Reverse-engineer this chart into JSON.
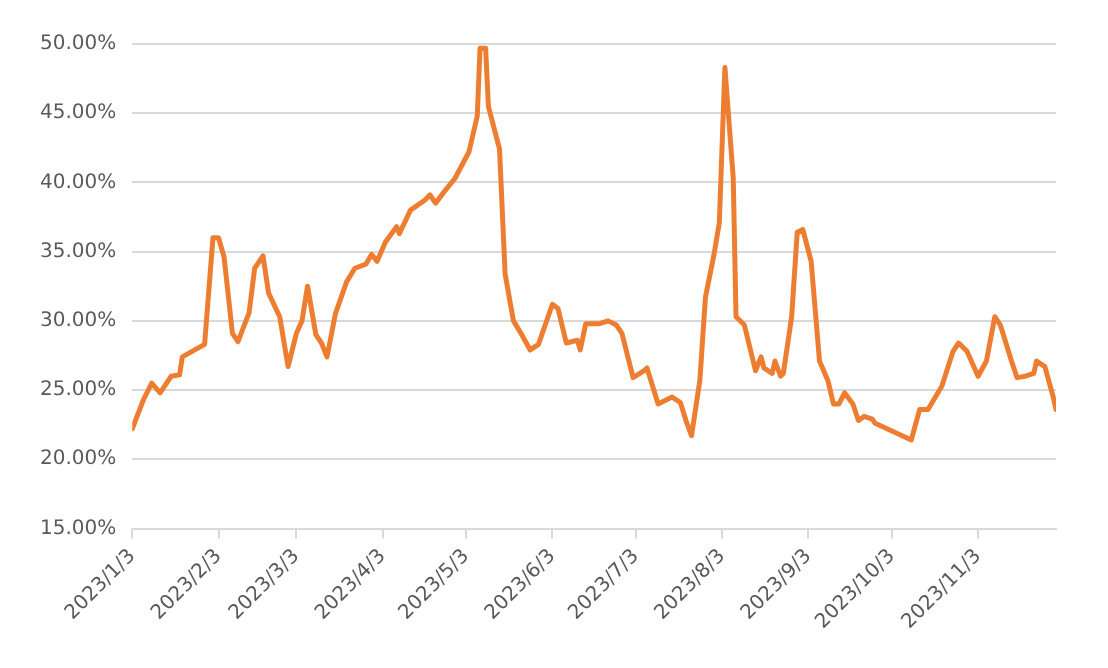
{
  "chart_data": {
    "type": "line",
    "x": [
      "2023-01-03",
      "2023-01-07",
      "2023-01-10",
      "2023-01-13",
      "2023-01-17",
      "2023-01-20",
      "2023-01-21",
      "2023-01-29",
      "2023-02-01",
      "2023-02-03",
      "2023-02-05",
      "2023-02-08",
      "2023-02-10",
      "2023-02-14",
      "2023-02-16",
      "2023-02-19",
      "2023-02-21",
      "2023-02-25",
      "2023-02-28",
      "2023-03-03",
      "2023-03-05",
      "2023-03-07",
      "2023-03-10",
      "2023-03-12",
      "2023-03-14",
      "2023-03-17",
      "2023-03-21",
      "2023-03-24",
      "2023-03-28",
      "2023-03-30",
      "2023-04-01",
      "2023-04-04",
      "2023-04-08",
      "2023-04-09",
      "2023-04-13",
      "2023-04-18",
      "2023-04-20",
      "2023-04-22",
      "2023-04-25",
      "2023-04-29",
      "2023-05-04",
      "2023-05-07",
      "2023-05-08",
      "2023-05-10",
      "2023-05-11",
      "2023-05-15",
      "2023-05-17",
      "2023-05-20",
      "2023-05-23",
      "2023-05-26",
      "2023-05-29",
      "2023-06-03",
      "2023-06-05",
      "2023-06-08",
      "2023-06-12",
      "2023-06-13",
      "2023-06-15",
      "2023-06-20",
      "2023-06-23",
      "2023-06-26",
      "2023-06-28",
      "2023-07-02",
      "2023-07-06",
      "2023-07-07",
      "2023-07-11",
      "2023-07-16",
      "2023-07-19",
      "2023-07-21",
      "2023-07-23",
      "2023-07-26",
      "2023-07-28",
      "2023-07-31",
      "2023-08-02",
      "2023-08-04",
      "2023-08-07",
      "2023-08-08",
      "2023-08-11",
      "2023-08-15",
      "2023-08-17",
      "2023-08-18",
      "2023-08-21",
      "2023-08-22",
      "2023-08-24",
      "2023-08-25",
      "2023-08-28",
      "2023-08-30",
      "2023-09-01",
      "2023-09-04",
      "2023-09-07",
      "2023-09-10",
      "2023-09-12",
      "2023-09-14",
      "2023-09-16",
      "2023-09-19",
      "2023-09-21",
      "2023-09-23",
      "2023-09-26",
      "2023-09-27",
      "2023-10-10",
      "2023-10-13",
      "2023-10-16",
      "2023-10-21",
      "2023-10-25",
      "2023-10-27",
      "2023-10-30",
      "2023-11-03",
      "2023-11-06",
      "2023-11-09",
      "2023-11-11",
      "2023-11-15",
      "2023-11-17",
      "2023-11-20",
      "2023-11-23",
      "2023-11-24",
      "2023-11-27",
      "2023-11-30",
      "2023-12-01"
    ],
    "series": [
      {
        "color": "#ed7d31",
        "values": [
          22.2,
          24.3,
          25.5,
          24.8,
          26.0,
          26.1,
          27.4,
          28.3,
          36.0,
          36.0,
          34.6,
          29.1,
          28.5,
          30.6,
          33.8,
          34.7,
          32.0,
          30.3,
          26.7,
          29.1,
          30.0,
          32.5,
          29.0,
          28.4,
          27.4,
          30.5,
          32.8,
          33.8,
          34.1,
          34.8,
          34.3,
          35.7,
          36.8,
          36.3,
          38.0,
          38.7,
          39.1,
          38.5,
          39.3,
          40.3,
          42.2,
          44.8,
          49.7,
          49.7,
          45.5,
          42.4,
          33.4,
          30.0,
          29.0,
          27.9,
          28.3,
          31.2,
          30.9,
          28.4,
          28.6,
          27.9,
          29.8,
          29.8,
          30.0,
          29.7,
          29.1,
          25.9,
          26.4,
          26.6,
          24.0,
          24.5,
          24.1,
          22.8,
          21.7,
          25.7,
          31.7,
          34.7,
          37.1,
          48.3,
          40.3,
          30.3,
          29.7,
          26.4,
          27.4,
          26.6,
          26.2,
          27.1,
          26.0,
          26.2,
          30.3,
          36.4,
          36.6,
          34.3,
          27.1,
          25.7,
          24.0,
          24.0,
          24.8,
          24.0,
          22.8,
          23.1,
          22.9,
          22.6,
          21.4,
          23.6,
          23.6,
          25.3,
          27.8,
          28.4,
          27.8,
          26.0,
          27.1,
          30.3,
          29.7,
          27.1,
          25.9,
          26.0,
          26.2,
          27.1,
          26.7,
          24.5,
          23.6
        ]
      }
    ],
    "xlim": [
      "2023-01-03",
      "2023-12-01"
    ],
    "xticks": [
      {
        "value": "2023-01-03",
        "label": "2023/1/3"
      },
      {
        "value": "2023-02-03",
        "label": "2023/2/3"
      },
      {
        "value": "2023-03-03",
        "label": "2023/3/3"
      },
      {
        "value": "2023-04-03",
        "label": "2023/4/3"
      },
      {
        "value": "2023-05-03",
        "label": "2023/5/3"
      },
      {
        "value": "2023-06-03",
        "label": "2023/6/3"
      },
      {
        "value": "2023-07-03",
        "label": "2023/7/3"
      },
      {
        "value": "2023-08-03",
        "label": "2023/8/3"
      },
      {
        "value": "2023-09-03",
        "label": "2023/9/3"
      },
      {
        "value": "2023-10-03",
        "label": "2023/10/3"
      },
      {
        "value": "2023-11-03",
        "label": "2023/11/3"
      }
    ],
    "ylim": [
      15,
      50
    ],
    "yticks": [
      {
        "value": 15,
        "label": "15.00%"
      },
      {
        "value": 20,
        "label": "20.00%"
      },
      {
        "value": 25,
        "label": "25.00%"
      },
      {
        "value": 30,
        "label": "30.00%"
      },
      {
        "value": 35,
        "label": "35.00%"
      },
      {
        "value": 40,
        "label": "40.00%"
      },
      {
        "value": 45,
        "label": "45.00%"
      },
      {
        "value": 50,
        "label": "50.00%"
      }
    ],
    "grid": "y",
    "marker": "none",
    "line_style": "solid",
    "legend": false
  }
}
